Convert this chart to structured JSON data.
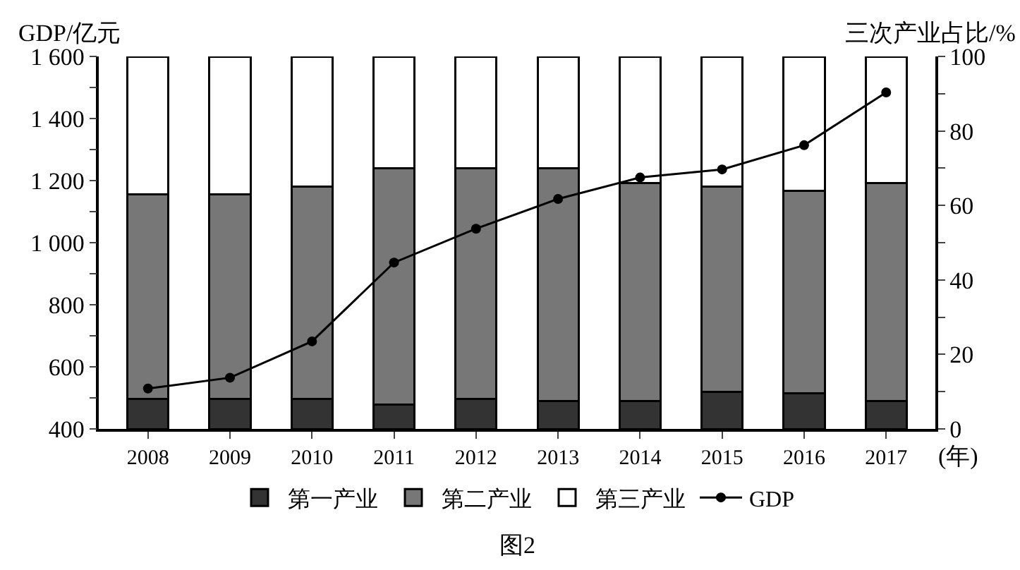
{
  "chart_data": {
    "type": "bar",
    "stacked": true,
    "xlabel": "(年)",
    "ylabel": "GDP/亿元",
    "y2label": "三次产业占比/%",
    "categories": [
      "2008",
      "2009",
      "2010",
      "2011",
      "2012",
      "2013",
      "2014",
      "2015",
      "2016",
      "2017"
    ],
    "series": [
      {
        "name": "第一产业",
        "color": "#333333",
        "axis": "y2",
        "values": [
          8,
          8,
          8,
          6.5,
          8,
          7.5,
          7.5,
          10,
          9.5,
          7.5
        ]
      },
      {
        "name": "第二产业",
        "color": "#777777",
        "axis": "y2",
        "values": [
          55,
          55,
          57,
          63.5,
          62,
          62.5,
          58.5,
          55,
          54.5,
          58.5
        ]
      },
      {
        "name": "第三产业",
        "color": "#ffffff",
        "axis": "y2",
        "values": [
          37,
          37,
          35,
          30,
          30,
          30,
          34,
          35,
          36,
          34
        ]
      },
      {
        "name": "GDP",
        "type": "line",
        "color": "#000000",
        "marker": "circle",
        "values": [
          530,
          565,
          682,
          936,
          1045,
          1141,
          1210,
          1236,
          1314,
          1484
        ]
      }
    ],
    "ylim": [
      400,
      1600
    ],
    "yticks": [
      400,
      {
        "value": 500,
        "label": null
      },
      600,
      {
        "value": 700,
        "label": null
      },
      800,
      {
        "value": 900,
        "label": null
      },
      {
        "value": 1000,
        "label": "1 000"
      },
      {
        "value": 1100,
        "label": null
      },
      {
        "value": 1200,
        "label": "1 200"
      },
      {
        "value": 1300,
        "label": null
      },
      {
        "value": 1400,
        "label": "1 400"
      },
      {
        "value": 1500,
        "label": null
      },
      {
        "value": 1600,
        "label": "1 600"
      }
    ],
    "y2lim": [
      0,
      100
    ],
    "y2ticks": [
      0,
      {
        "value": 10,
        "label": null
      },
      20,
      {
        "value": 30,
        "label": null
      },
      40,
      {
        "value": 50,
        "label": null
      },
      60,
      {
        "value": 70,
        "label": null
      },
      80,
      {
        "value": 90,
        "label": null
      },
      100
    ],
    "legend": "bottom",
    "annotations": [
      "图2"
    ]
  }
}
